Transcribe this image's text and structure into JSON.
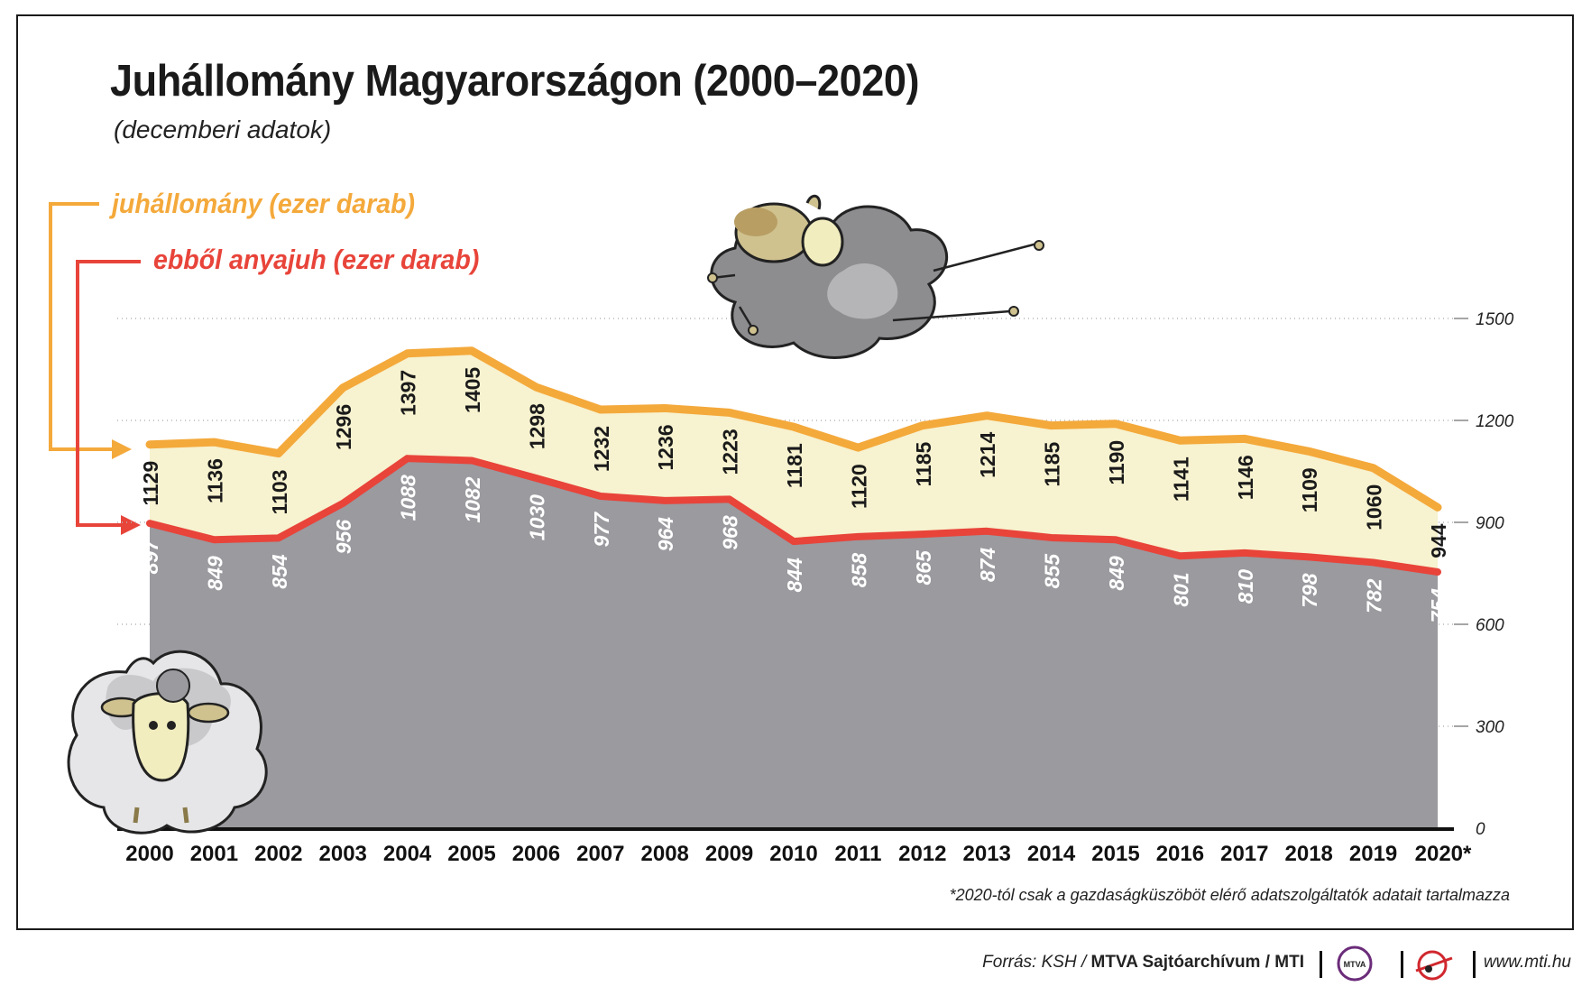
{
  "header": {
    "title": "Juhállomány Magyarországon (2000–2020)",
    "subtitle": "(decemberi adatok)"
  },
  "legend": {
    "total_label": "juhállomány (ezer darab)",
    "ewes_label": "ebből anyajuh (ezer darab)"
  },
  "colors": {
    "total_line": "#f4a93b",
    "ewes_line": "#e8443a",
    "band_fill": "#f7f2cf",
    "area_fill": "#9a9a9f"
  },
  "chart_data": {
    "type": "area",
    "title": "Juhállomány Magyarországon (2000–2020)",
    "subtitle": "(decemberi adatok)",
    "categories": [
      "2000",
      "2001",
      "2002",
      "2003",
      "2004",
      "2005",
      "2006",
      "2007",
      "2008",
      "2009",
      "2010",
      "2011",
      "2012",
      "2013",
      "2014",
      "2015",
      "2016",
      "2017",
      "2018",
      "2019",
      "2020*"
    ],
    "series": [
      {
        "name": "juhállomány (ezer darab)",
        "values": [
          1129,
          1136,
          1103,
          1296,
          1397,
          1405,
          1298,
          1232,
          1236,
          1223,
          1181,
          1120,
          1185,
          1214,
          1185,
          1190,
          1141,
          1146,
          1109,
          1060,
          944
        ]
      },
      {
        "name": "ebből anyajuh (ezer darab)",
        "values": [
          897,
          849,
          854,
          956,
          1088,
          1082,
          1030,
          977,
          964,
          968,
          844,
          858,
          865,
          874,
          855,
          849,
          801,
          810,
          798,
          782,
          754
        ]
      }
    ],
    "yticks": [
      0,
      300,
      600,
      900,
      1200,
      1500
    ],
    "ylim": [
      0,
      1500
    ],
    "axis_position": "right",
    "grid": true,
    "xlabel": "",
    "ylabel": ""
  },
  "footnote": "*2020-tól csak a gazdaságküszöböt elérő adatszolgáltatók adatait tartalmazza",
  "footer": {
    "source_prefix": "Forrás: KSH / ",
    "source_archive": "MTVA Sajtóarchívum",
    "source_sep": " / ",
    "source_agency": "MTI",
    "logo_text": "MTVA",
    "website": "www.mti.hu"
  }
}
